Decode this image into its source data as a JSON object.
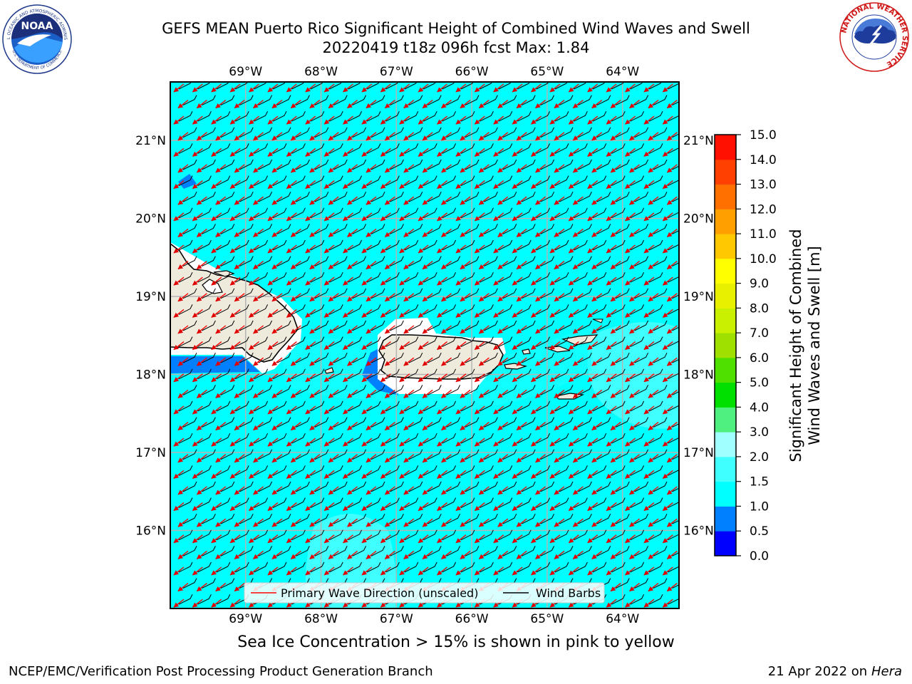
{
  "title": {
    "line1": "GEFS MEAN Puerto Rico Significant Height of Combined Wind Waves and Swell",
    "line2": "20220419 t18z 096h fcst   Max: 1.84"
  },
  "map": {
    "extent": {
      "lon_min": -70.0,
      "lon_max": -63.25,
      "lat_min": 15.0,
      "lat_max": 21.75
    },
    "lon_ticks": [
      {
        "value": -69,
        "label": "69°W"
      },
      {
        "value": -68,
        "label": "68°W"
      },
      {
        "value": -67,
        "label": "67°W"
      },
      {
        "value": -66,
        "label": "66°W"
      },
      {
        "value": -65,
        "label": "65°W"
      },
      {
        "value": -64,
        "label": "64°W"
      }
    ],
    "lat_ticks": [
      {
        "value": 21,
        "label": "21°N"
      },
      {
        "value": 20,
        "label": "20°N"
      },
      {
        "value": 19,
        "label": "19°N"
      },
      {
        "value": 18,
        "label": "18°N"
      },
      {
        "value": 17,
        "label": "17°N"
      },
      {
        "value": 16,
        "label": "16°N"
      }
    ],
    "ocean_color": "#00ffff",
    "land_color": "#eeeadc",
    "legend": {
      "wave_label": "Primary Wave Direction (unscaled)",
      "barb_label": "Wind Barbs",
      "wave_color": "#ff0000",
      "barb_color": "#000000"
    }
  },
  "colorbar": {
    "label": "Significant Height of Combined Wind Waves and Swell [m]",
    "label_line1": "Significant Height of Combined",
    "label_line2": "Wind Waves and Swell [m]",
    "levels": [
      {
        "value": "0.0",
        "color": "#0000ff"
      },
      {
        "value": "0.5",
        "color": "#0080ff"
      },
      {
        "value": "1.0",
        "color": "#00ffff"
      },
      {
        "value": "1.5",
        "color": "#40ffff"
      },
      {
        "value": "2.0",
        "color": "#a0ffff"
      },
      {
        "value": "3.0",
        "color": "#50f080"
      },
      {
        "value": "4.0",
        "color": "#00e000"
      },
      {
        "value": "5.0",
        "color": "#50e000"
      },
      {
        "value": "6.0",
        "color": "#a0e000"
      },
      {
        "value": "7.0",
        "color": "#c8f000"
      },
      {
        "value": "8.0",
        "color": "#e8f000"
      },
      {
        "value": "9.0",
        "color": "#ffff00"
      },
      {
        "value": "10.0",
        "color": "#ffc800"
      },
      {
        "value": "11.0",
        "color": "#ffa000"
      },
      {
        "value": "12.0",
        "color": "#ff7000"
      },
      {
        "value": "13.0",
        "color": "#ff4000"
      },
      {
        "value": "14.0",
        "color": "#ff1000"
      },
      {
        "value": "15.0",
        "color": ""
      }
    ]
  },
  "caption": "Sea Ice Concentration > 15% is shown in pink to yellow",
  "footer": {
    "left": "NCEP/EMC/Verification Post Processing Product Generation Branch",
    "date": "21 Apr 2022 on ",
    "host": "Hera"
  },
  "logos": {
    "noaa_text": "NOAA",
    "noaa_ring_top": "NATIONAL OCEANIC AND ATMOSPHERIC ADMINISTRATION",
    "noaa_ring_bottom": "U.S. DEPARTMENT OF COMMERCE",
    "nws_ring": "NATIONAL WEATHER SERVICE"
  }
}
